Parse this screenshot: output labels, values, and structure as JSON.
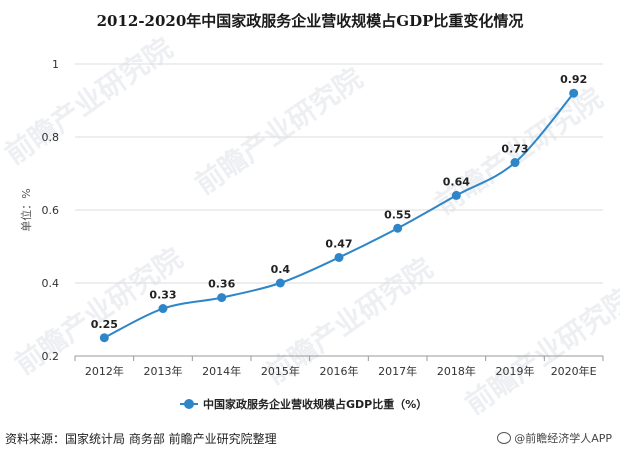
{
  "chart_data": {
    "type": "line",
    "title": "2012-2020年中国家政服务企业营收规模占GDP比重变化情况",
    "ylabel": "单位：%",
    "ylim": [
      0.2,
      1
    ],
    "yticks": [
      "0.2",
      "0.4",
      "0.6",
      "0.8",
      "1"
    ],
    "categories": [
      "2012年",
      "2013年",
      "2014年",
      "2015年",
      "2016年",
      "2017年",
      "2018年",
      "2019年",
      "2020年E"
    ],
    "series": [
      {
        "name": "中国家政服务企业营收规模占GDP比重（%）",
        "values": [
          0.25,
          0.33,
          0.36,
          0.4,
          0.47,
          0.55,
          0.64,
          0.73,
          0.92
        ],
        "labels": [
          "0.25",
          "0.33",
          "0.36",
          "0.4",
          "0.47",
          "0.55",
          "0.64",
          "0.73",
          "0.92"
        ]
      }
    ],
    "grid": true,
    "legend_position": "bottom",
    "colors": {
      "series": "#2e86c8",
      "grid": "#dcdcdc"
    }
  },
  "footer": {
    "source": "资料来源：国家统计局 商务部 前瞻产业研究院整理",
    "brand": "@前瞻经济学人APP"
  },
  "watermark": "前瞻产业研究院"
}
